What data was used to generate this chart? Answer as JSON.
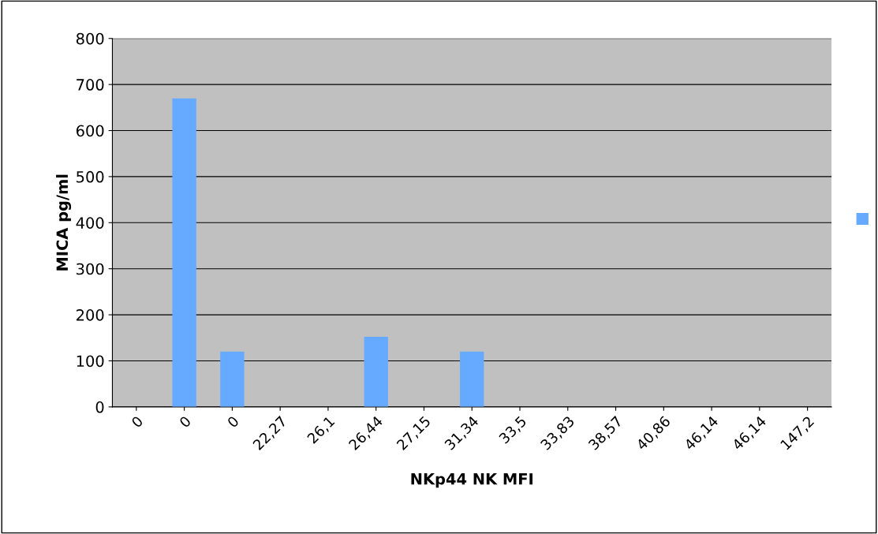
{
  "chart_data": {
    "type": "bar",
    "xlabel": "NKp44 NK MFI",
    "ylabel": "MICA pg/ml",
    "categories": [
      "0",
      "0",
      "0",
      "22,27",
      "26,1",
      "26,44",
      "27,15",
      "31,34",
      "33,5",
      "33,83",
      "38,57",
      "40,86",
      "46,14",
      "46,14",
      "147,2"
    ],
    "series": [
      {
        "color": "#66aaff",
        "values": [
          0,
          670,
          120,
          0,
          0,
          152,
          0,
          120,
          0,
          0,
          0,
          0,
          0,
          0,
          0
        ]
      }
    ],
    "ylim": [
      0,
      800
    ],
    "yticks": [
      0,
      100,
      200,
      300,
      400,
      500,
      600,
      700,
      800
    ],
    "grid": "y"
  }
}
